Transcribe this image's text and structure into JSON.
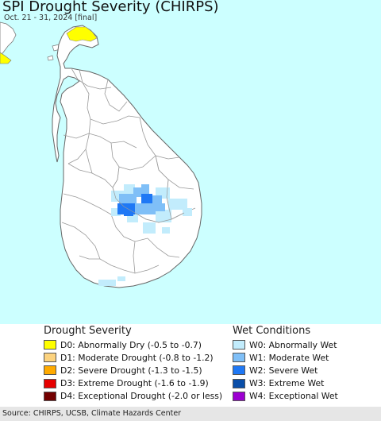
{
  "title": "SPI Drought Severity (CHIRPS)",
  "subtitle": "Oct. 21 - 31, 2024 [final]",
  "colors": {
    "ocean": "#ccffff",
    "land": "#ffffff",
    "border": "#999999",
    "d0": "#ffff00",
    "d1": "#fcd37f",
    "d2": "#ffaa00",
    "d3": "#e60000",
    "d4": "#730000",
    "w0": "#c2ecfc",
    "w1": "#7fbff7",
    "w2": "#1f78f5",
    "w3": "#0a4ea8",
    "w4": "#9c00d1"
  },
  "legend": {
    "drought_heading": "Drought Severity",
    "wet_heading": "Wet Conditions",
    "drought_items": [
      {
        "label": "D0: Abnormally Dry (-0.5 to -0.7)",
        "color": "#ffff00"
      },
      {
        "label": "D1: Moderate Drought (-0.8 to -1.2)",
        "color": "#fcd37f"
      },
      {
        "label": "D2: Severe Drought (-1.3 to -1.5)",
        "color": "#ffaa00"
      },
      {
        "label": "D3: Extreme Drought (-1.6 to -1.9)",
        "color": "#e60000"
      },
      {
        "label": "D4: Exceptional Drought (-2.0 or less)",
        "color": "#730000"
      }
    ],
    "wet_items": [
      {
        "label": "W0: Abnormally Wet",
        "color": "#c2ecfc"
      },
      {
        "label": "W1: Moderate Wet",
        "color": "#7fbff7"
      },
      {
        "label": "W2: Severe Wet",
        "color": "#1f78f5"
      },
      {
        "label": "W3: Extreme Wet",
        "color": "#0a4ea8"
      },
      {
        "label": "W4: Exceptional Wet",
        "color": "#9c00d1"
      }
    ]
  },
  "footer": "Source: CHIRPS, UCSB, Climate Hazards Center"
}
